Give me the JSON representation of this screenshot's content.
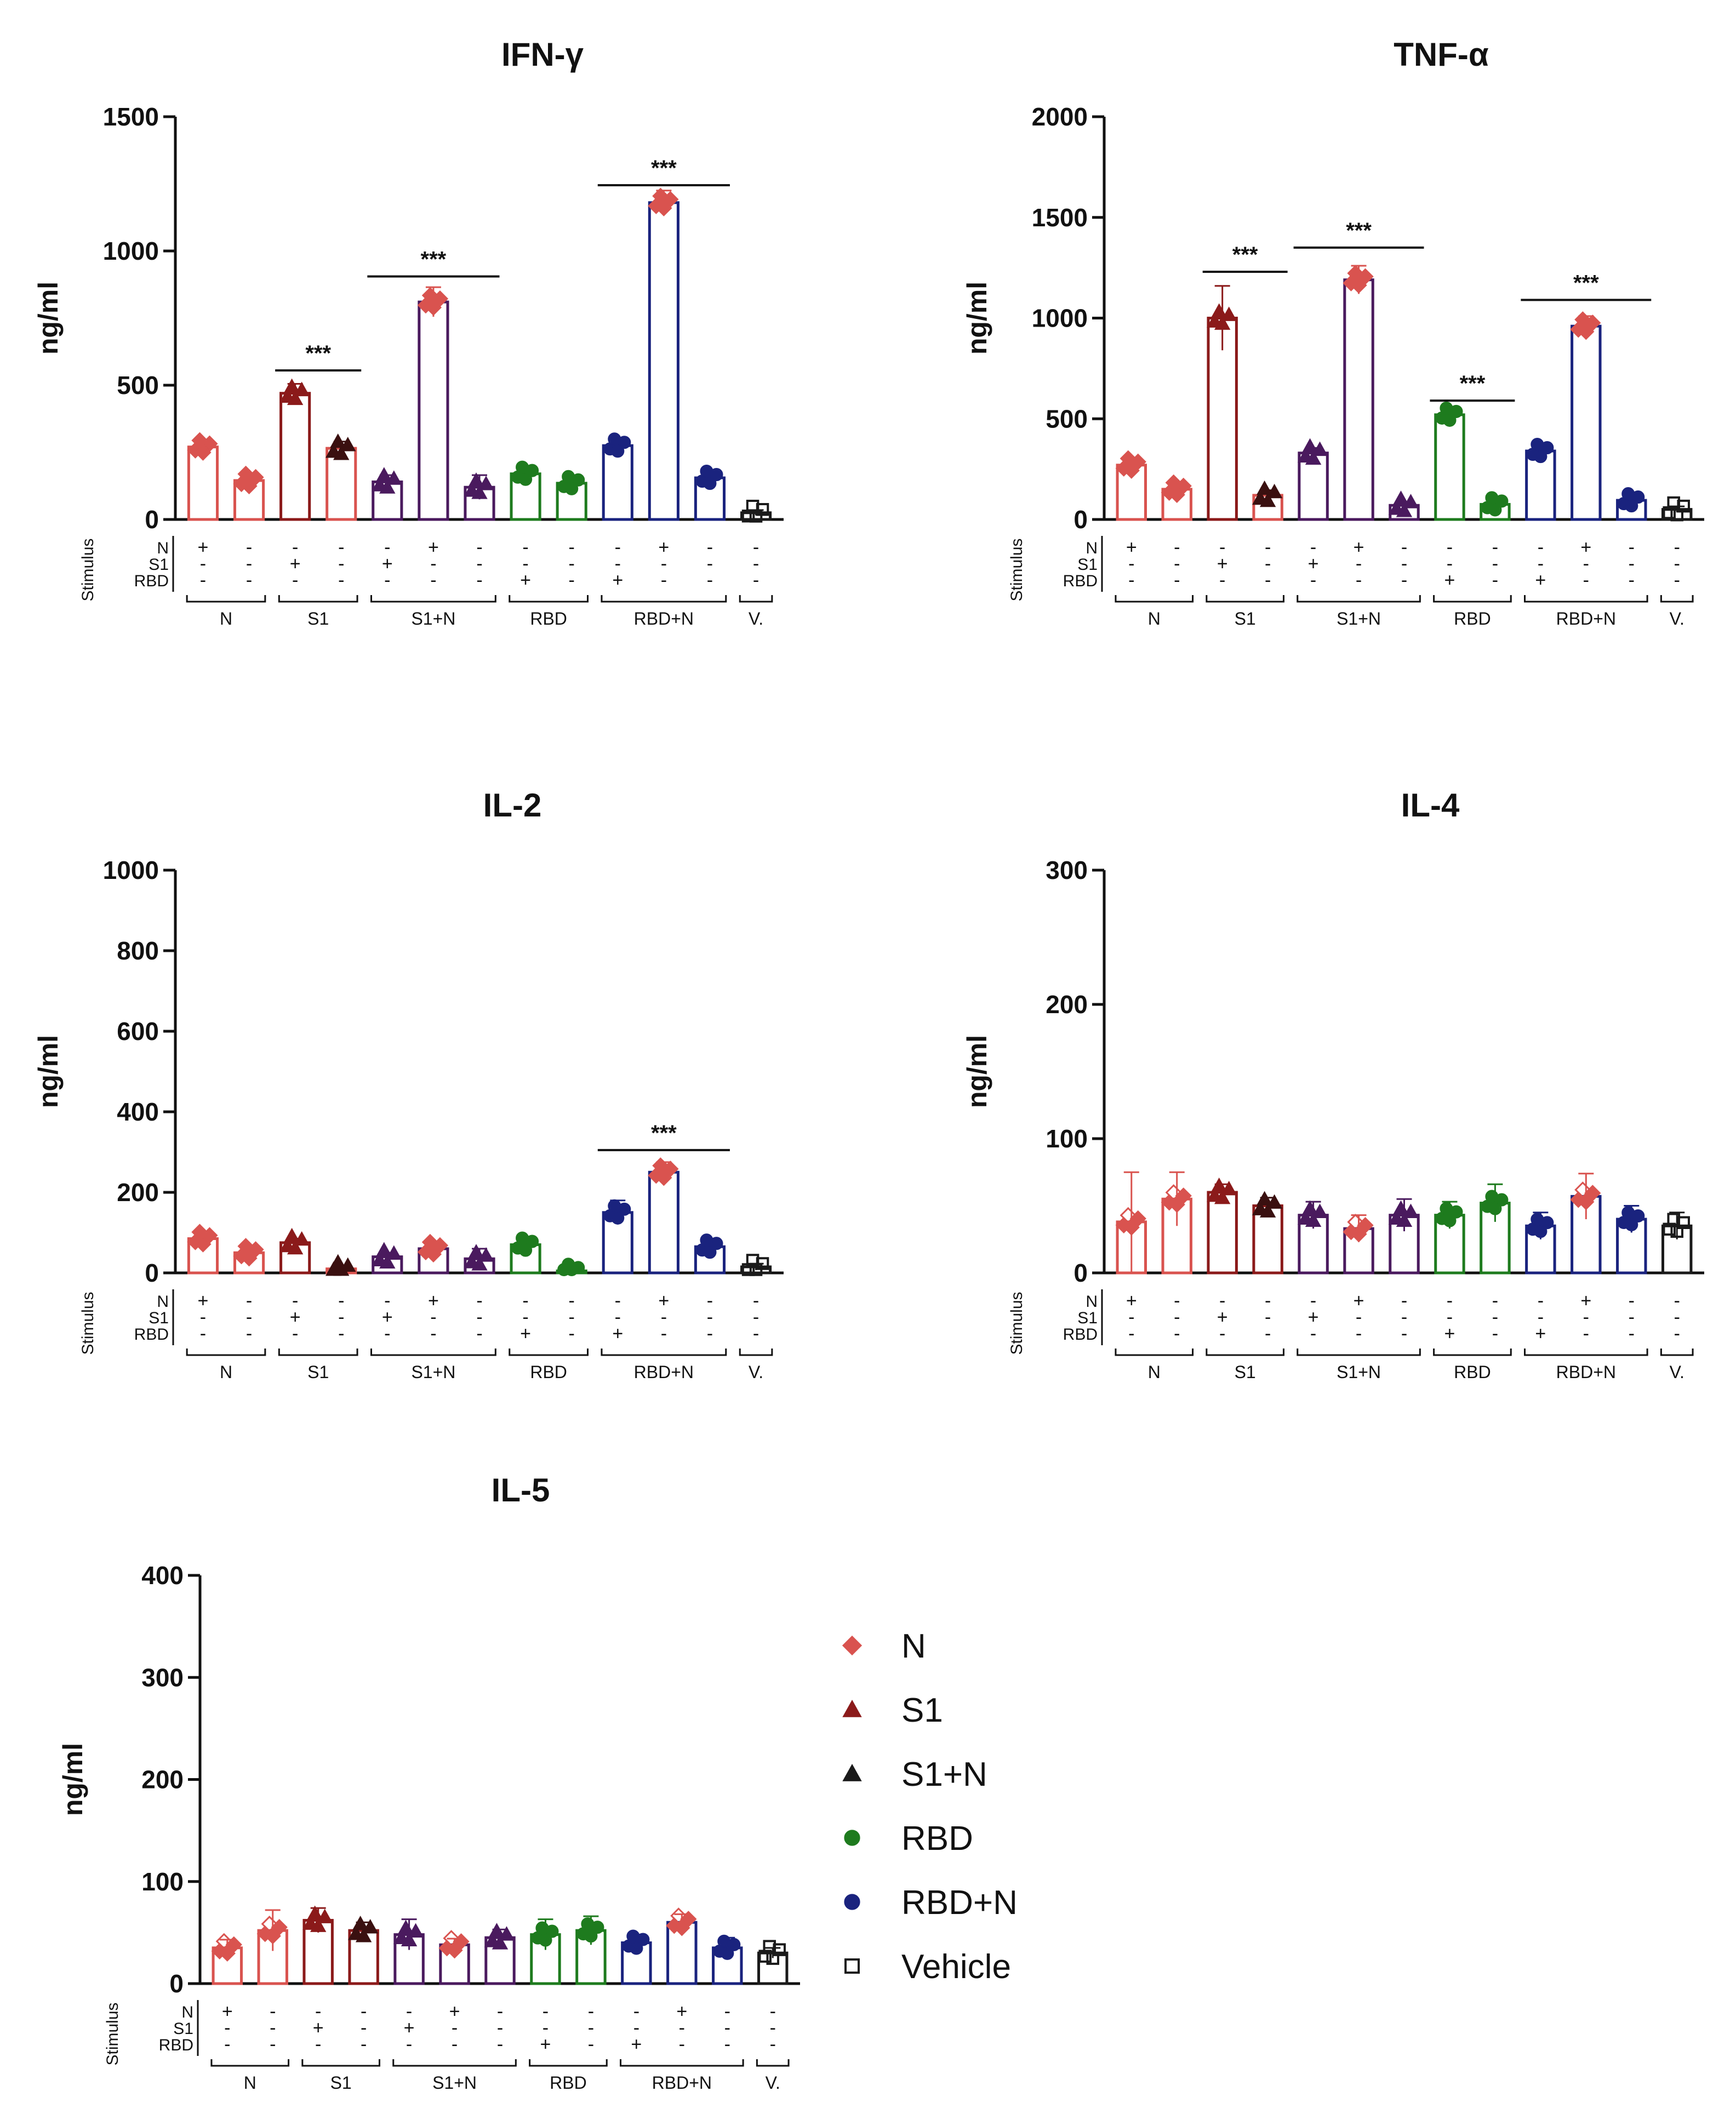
{
  "figure": {
    "legend": [
      {
        "label": "N",
        "color": "#d9534f",
        "marker": "diamond"
      },
      {
        "label": "S1",
        "color": "#8b1a1a",
        "marker": "triangle"
      },
      {
        "label": "S1+N",
        "color": "#1a1a1a",
        "marker": "triangle"
      },
      {
        "label": "RBD",
        "color": "#1e7b1e",
        "marker": "circle"
      },
      {
        "label": "RBD+N",
        "color": "#1a237e",
        "marker": "circle"
      },
      {
        "label": "Vehicle",
        "color": "#1a1a1a",
        "marker": "square"
      }
    ]
  },
  "stimulus_matrix": {
    "label": "Stimulus",
    "row_labels": [
      "N",
      "S1",
      "RBD"
    ],
    "group_labels": [
      "N",
      "S1",
      "S1+N",
      "RBD",
      "RBD+N",
      "V."
    ]
  },
  "chart_data": [
    {
      "type": "bar",
      "title": "IFN-γ",
      "ylabel": "ng/ml",
      "ylim": [
        0,
        1500
      ],
      "yticks": [
        0,
        500,
        1000,
        1500
      ],
      "bar_colors": [
        "#d9534f",
        "#d9534f",
        "#8b1a1a",
        "#d9534f",
        "#4a1a5e",
        "#4a1a5e",
        "#4a1a5e",
        "#1e7b1e",
        "#1e7b1e",
        "#1a237e",
        "#1a237e",
        "#1a237e",
        "#1a1a1a"
      ],
      "point_colors": [
        "#d9534f",
        "#d9534f",
        "#8b1a1a",
        "#3a1010",
        "#4a1a5e",
        "#d9534f",
        "#4a1a5e",
        "#1e7b1e",
        "#1e7b1e",
        "#1a237e",
        "#d9534f",
        "#1a237e",
        "#1a1a1a"
      ],
      "values": [
        270,
        145,
        470,
        265,
        140,
        810,
        120,
        170,
        135,
        275,
        1180,
        155,
        25
      ],
      "errors": [
        25,
        15,
        35,
        25,
        25,
        55,
        45,
        20,
        15,
        25,
        45,
        30,
        10
      ],
      "significance": [
        {
          "from": 2,
          "to": 3,
          "y": 555,
          "label": "***"
        },
        {
          "from": 4,
          "to": 6,
          "y": 905,
          "label": "***"
        },
        {
          "from": 9,
          "to": 11,
          "y": 1245,
          "label": "***"
        }
      ],
      "stim_rows": [
        [
          "+",
          "-",
          "-",
          "-",
          "-",
          "+",
          "-",
          "-",
          "-",
          "-",
          "+",
          "-",
          "-"
        ],
        [
          "-",
          "-",
          "+",
          "-",
          "+",
          "-",
          "-",
          "-",
          "-",
          "-",
          "-",
          "-",
          "-"
        ],
        [
          "-",
          "-",
          "-",
          "-",
          "-",
          "-",
          "-",
          "+",
          "-",
          "+",
          "-",
          "-",
          "-"
        ]
      ],
      "groups": [
        [
          0,
          1
        ],
        [
          2,
          3
        ],
        [
          4,
          6
        ],
        [
          7,
          8
        ],
        [
          9,
          11
        ],
        [
          12,
          12
        ]
      ]
    },
    {
      "type": "bar",
      "title": "TNF-α",
      "ylabel": "ng/ml",
      "ylim": [
        0,
        2000
      ],
      "yticks": [
        0,
        500,
        1000,
        1500,
        2000
      ],
      "bar_colors": [
        "#d9534f",
        "#d9534f",
        "#8b1a1a",
        "#d9534f",
        "#4a1a5e",
        "#4a1a5e",
        "#4a1a5e",
        "#1e7b1e",
        "#1e7b1e",
        "#1a237e",
        "#1a237e",
        "#1a237e",
        "#1a1a1a"
      ],
      "point_colors": [
        "#d9534f",
        "#d9534f",
        "#8b1a1a",
        "#3a1010",
        "#4a1a5e",
        "#d9534f",
        "#4a1a5e",
        "#1e7b1e",
        "#1e7b1e",
        "#1a237e",
        "#d9534f",
        "#1a237e",
        "#1a1a1a"
      ],
      "values": [
        270,
        150,
        1000,
        120,
        330,
        1190,
        70,
        520,
        75,
        340,
        960,
        95,
        50
      ],
      "errors": [
        30,
        20,
        160,
        25,
        25,
        70,
        15,
        20,
        15,
        30,
        50,
        20,
        15
      ],
      "significance": [
        {
          "from": 2,
          "to": 3,
          "y": 1230,
          "label": "***"
        },
        {
          "from": 4,
          "to": 6,
          "y": 1350,
          "label": "***"
        },
        {
          "from": 7,
          "to": 8,
          "y": 590,
          "label": "***"
        },
        {
          "from": 9,
          "to": 11,
          "y": 1090,
          "label": "***"
        }
      ],
      "stim_rows": [
        [
          "+",
          "-",
          "-",
          "-",
          "-",
          "+",
          "-",
          "-",
          "-",
          "-",
          "+",
          "-",
          "-"
        ],
        [
          "-",
          "-",
          "+",
          "-",
          "+",
          "-",
          "-",
          "-",
          "-",
          "-",
          "-",
          "-",
          "-"
        ],
        [
          "-",
          "-",
          "-",
          "-",
          "-",
          "-",
          "-",
          "+",
          "-",
          "+",
          "-",
          "-",
          "-"
        ]
      ],
      "groups": [
        [
          0,
          1
        ],
        [
          2,
          3
        ],
        [
          4,
          6
        ],
        [
          7,
          8
        ],
        [
          9,
          11
        ],
        [
          12,
          12
        ]
      ]
    },
    {
      "type": "bar",
      "title": "IL-2",
      "ylabel": "ng/ml",
      "ylim": [
        0,
        1000
      ],
      "yticks": [
        0,
        200,
        400,
        600,
        800,
        1000
      ],
      "bar_colors": [
        "#d9534f",
        "#d9534f",
        "#8b1a1a",
        "#d9534f",
        "#4a1a5e",
        "#4a1a5e",
        "#4a1a5e",
        "#1e7b1e",
        "#1e7b1e",
        "#1a237e",
        "#1a237e",
        "#1a237e",
        "#1a1a1a"
      ],
      "point_colors": [
        "#d9534f",
        "#d9534f",
        "#8b1a1a",
        "#3a1010",
        "#4a1a5e",
        "#d9534f",
        "#4a1a5e",
        "#1e7b1e",
        "#1e7b1e",
        "#1a237e",
        "#d9534f",
        "#1a237e",
        "#1a1a1a"
      ],
      "values": [
        85,
        50,
        75,
        10,
        40,
        60,
        35,
        70,
        5,
        150,
        250,
        65,
        15
      ],
      "errors": [
        12,
        10,
        10,
        5,
        10,
        10,
        25,
        20,
        5,
        30,
        25,
        20,
        8
      ],
      "significance": [
        {
          "from": 9,
          "to": 11,
          "y": 305,
          "label": "***"
        }
      ],
      "stim_rows": [
        [
          "+",
          "-",
          "-",
          "-",
          "-",
          "+",
          "-",
          "-",
          "-",
          "-",
          "+",
          "-",
          "-"
        ],
        [
          "-",
          "-",
          "+",
          "-",
          "+",
          "-",
          "-",
          "-",
          "-",
          "-",
          "-",
          "-",
          "-"
        ],
        [
          "-",
          "-",
          "-",
          "-",
          "-",
          "-",
          "-",
          "+",
          "-",
          "+",
          "-",
          "-",
          "-"
        ]
      ],
      "groups": [
        [
          0,
          1
        ],
        [
          2,
          3
        ],
        [
          4,
          6
        ],
        [
          7,
          8
        ],
        [
          9,
          11
        ],
        [
          12,
          12
        ]
      ]
    },
    {
      "type": "bar",
      "title": "IL-4",
      "ylabel": "ng/ml",
      "ylim": [
        0,
        300
      ],
      "yticks": [
        0,
        100,
        200,
        300
      ],
      "bar_colors": [
        "#d9534f",
        "#d9534f",
        "#8b1a1a",
        "#8b1a1a",
        "#4a1a5e",
        "#4a1a5e",
        "#4a1a5e",
        "#1e7b1e",
        "#1e7b1e",
        "#1a237e",
        "#1a237e",
        "#1a237e",
        "#1a1a1a"
      ],
      "point_colors": [
        "#d9534f",
        "#d9534f",
        "#8b1a1a",
        "#3a1010",
        "#4a1a5e",
        "#d9534f",
        "#4a1a5e",
        "#1e7b1e",
        "#1e7b1e",
        "#1a237e",
        "#d9534f",
        "#1a237e",
        "#1a1a1a"
      ],
      "values": [
        38,
        55,
        60,
        50,
        43,
        33,
        43,
        43,
        52,
        35,
        57,
        40,
        35
      ],
      "errors": [
        37,
        20,
        6,
        6,
        10,
        10,
        12,
        10,
        14,
        10,
        17,
        10,
        10
      ],
      "significance": [],
      "stim_rows": [
        [
          "+",
          "-",
          "-",
          "-",
          "-",
          "+",
          "-",
          "-",
          "-",
          "-",
          "+",
          "-",
          "-"
        ],
        [
          "-",
          "-",
          "+",
          "-",
          "+",
          "-",
          "-",
          "-",
          "-",
          "-",
          "-",
          "-",
          "-"
        ],
        [
          "-",
          "-",
          "-",
          "-",
          "-",
          "-",
          "-",
          "+",
          "-",
          "+",
          "-",
          "-",
          "-"
        ]
      ],
      "groups": [
        [
          0,
          1
        ],
        [
          2,
          3
        ],
        [
          4,
          6
        ],
        [
          7,
          8
        ],
        [
          9,
          11
        ],
        [
          12,
          12
        ]
      ]
    },
    {
      "type": "bar",
      "title": "IL-5",
      "ylabel": "ng/ml",
      "ylim": [
        0,
        400
      ],
      "yticks": [
        0,
        100,
        200,
        300,
        400
      ],
      "bar_colors": [
        "#d9534f",
        "#d9534f",
        "#8b1a1a",
        "#8b1a1a",
        "#4a1a5e",
        "#4a1a5e",
        "#4a1a5e",
        "#1e7b1e",
        "#1e7b1e",
        "#1a237e",
        "#1a237e",
        "#1a237e",
        "#1a1a1a"
      ],
      "point_colors": [
        "#d9534f",
        "#d9534f",
        "#8b1a1a",
        "#3a1010",
        "#4a1a5e",
        "#d9534f",
        "#4a1a5e",
        "#1e7b1e",
        "#1e7b1e",
        "#1a237e",
        "#d9534f",
        "#1a237e",
        "#1a1a1a"
      ],
      "values": [
        35,
        52,
        62,
        52,
        48,
        38,
        45,
        48,
        52,
        40,
        60,
        35,
        30
      ],
      "errors": [
        8,
        20,
        12,
        8,
        15,
        6,
        8,
        15,
        14,
        8,
        8,
        10,
        5
      ],
      "significance": [],
      "stim_rows": [
        [
          "+",
          "-",
          "-",
          "-",
          "-",
          "+",
          "-",
          "-",
          "-",
          "-",
          "+",
          "-",
          "-"
        ],
        [
          "-",
          "-",
          "+",
          "-",
          "+",
          "-",
          "-",
          "-",
          "-",
          "-",
          "-",
          "-",
          "-"
        ],
        [
          "-",
          "-",
          "-",
          "-",
          "-",
          "-",
          "-",
          "+",
          "-",
          "+",
          "-",
          "-",
          "-"
        ]
      ],
      "groups": [
        [
          0,
          1
        ],
        [
          2,
          3
        ],
        [
          4,
          6
        ],
        [
          7,
          8
        ],
        [
          9,
          11
        ],
        [
          12,
          12
        ]
      ]
    }
  ]
}
